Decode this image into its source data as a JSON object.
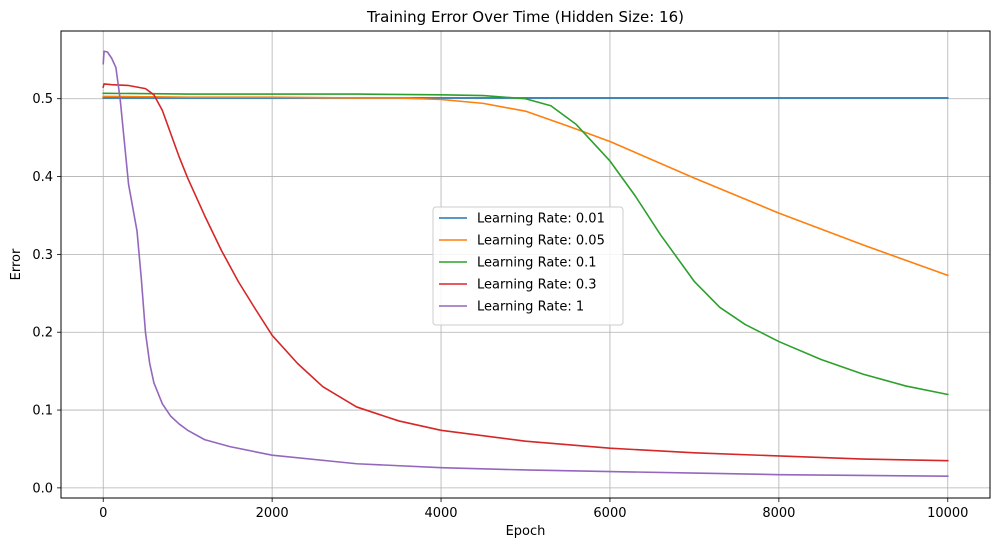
{
  "chart_data": {
    "type": "line",
    "title": "Training Error Over Time (Hidden Size: 16)",
    "xlabel": "Epoch",
    "ylabel": "Error",
    "xlim": [
      -500,
      10500
    ],
    "ylim": [
      -0.013,
      0.587
    ],
    "xticks": [
      0,
      2000,
      4000,
      6000,
      8000,
      10000
    ],
    "yticks": [
      0.0,
      0.1,
      0.2,
      0.3,
      0.4,
      0.5
    ],
    "xtick_labels": [
      "0",
      "2000",
      "4000",
      "6000",
      "8000",
      "10000"
    ],
    "ytick_labels": [
      "0.0",
      "0.1",
      "0.2",
      "0.3",
      "0.4",
      "0.5"
    ],
    "grid": true,
    "legend_position": "center",
    "series": [
      {
        "name": "Learning Rate: 0.01",
        "color": "#1f77b4",
        "x": [
          0,
          1000,
          2000,
          3000,
          4000,
          5000,
          6000,
          7000,
          8000,
          9000,
          10000
        ],
        "y": [
          0.501,
          0.501,
          0.501,
          0.501,
          0.501,
          0.501,
          0.501,
          0.501,
          0.501,
          0.501,
          0.501
        ]
      },
      {
        "name": "Learning Rate: 0.05",
        "color": "#ff7f0e",
        "x": [
          0,
          1000,
          2000,
          3000,
          3500,
          4000,
          4500,
          5000,
          5500,
          6000,
          7000,
          8000,
          9000,
          10000
        ],
        "y": [
          0.503,
          0.502,
          0.502,
          0.501,
          0.501,
          0.499,
          0.494,
          0.484,
          0.465,
          0.445,
          0.398,
          0.353,
          0.312,
          0.273
        ]
      },
      {
        "name": "Learning Rate: 0.1",
        "color": "#2ca02c",
        "x": [
          0,
          1000,
          2000,
          3000,
          4000,
          4500,
          5000,
          5300,
          5600,
          6000,
          6300,
          6600,
          7000,
          7300,
          7600,
          8000,
          8500,
          9000,
          9500,
          10000
        ],
        "y": [
          0.507,
          0.506,
          0.506,
          0.506,
          0.505,
          0.504,
          0.5,
          0.491,
          0.467,
          0.42,
          0.375,
          0.325,
          0.265,
          0.232,
          0.21,
          0.188,
          0.165,
          0.146,
          0.131,
          0.12
        ]
      },
      {
        "name": "Learning Rate: 0.3",
        "color": "#d62728",
        "x": [
          0,
          10,
          100,
          300,
          500,
          600,
          700,
          800,
          900,
          1000,
          1200,
          1400,
          1600,
          1800,
          2000,
          2300,
          2600,
          3000,
          3500,
          4000,
          5000,
          6000,
          7000,
          8000,
          9000,
          10000
        ],
        "y": [
          0.515,
          0.519,
          0.518,
          0.517,
          0.513,
          0.505,
          0.485,
          0.455,
          0.425,
          0.398,
          0.35,
          0.305,
          0.265,
          0.23,
          0.196,
          0.16,
          0.13,
          0.104,
          0.086,
          0.074,
          0.06,
          0.051,
          0.045,
          0.041,
          0.037,
          0.035
        ]
      },
      {
        "name": "Learning Rate: 1",
        "color": "#9467bd",
        "x": [
          0,
          10,
          50,
          100,
          150,
          200,
          250,
          300,
          350,
          400,
          450,
          500,
          550,
          600,
          700,
          800,
          900,
          1000,
          1200,
          1500,
          2000,
          3000,
          4000,
          5000,
          6000,
          7000,
          8000,
          9000,
          10000
        ],
        "y": [
          0.545,
          0.561,
          0.56,
          0.552,
          0.54,
          0.5,
          0.445,
          0.39,
          0.36,
          0.33,
          0.27,
          0.2,
          0.16,
          0.135,
          0.108,
          0.092,
          0.082,
          0.074,
          0.062,
          0.053,
          0.042,
          0.031,
          0.026,
          0.023,
          0.021,
          0.019,
          0.017,
          0.016,
          0.015
        ]
      }
    ]
  }
}
